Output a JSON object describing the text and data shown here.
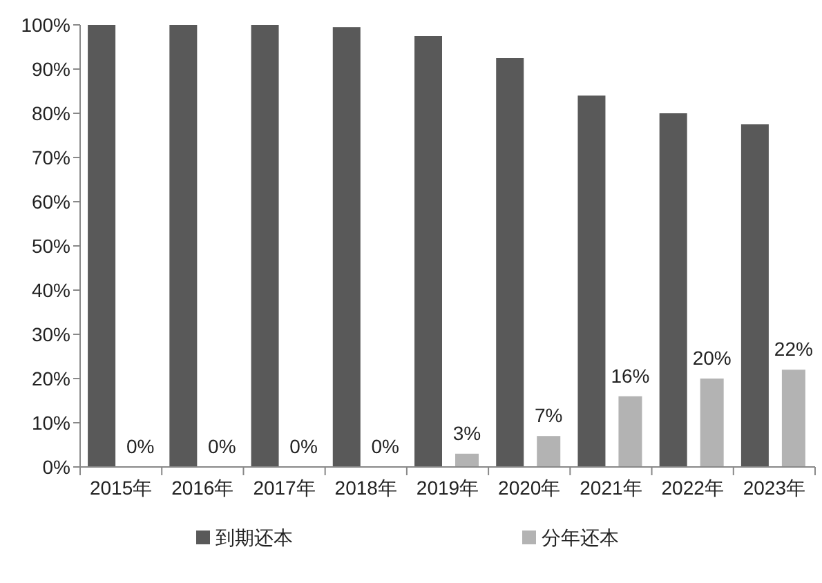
{
  "chart_data": {
    "type": "bar",
    "categories": [
      "2015年",
      "2016年",
      "2017年",
      "2018年",
      "2019年",
      "2020年",
      "2021年",
      "2022年",
      "2023年"
    ],
    "series": [
      {
        "name": "到期还本",
        "color": "#595959",
        "values": [
          100,
          100,
          100,
          99.5,
          97.5,
          92.5,
          84,
          80,
          77.5
        ]
      },
      {
        "name": "分年还本",
        "color": "#b3b3b3",
        "values": [
          0,
          0,
          0,
          0,
          3,
          7,
          16,
          20,
          22
        ],
        "value_labels": [
          "0%",
          "0%",
          "0%",
          "0%",
          "3%",
          "7%",
          "16%",
          "20%",
          "22%"
        ]
      }
    ],
    "ylim": [
      0,
      100
    ],
    "yticks": [
      {
        "value": 0,
        "label": "0%"
      },
      {
        "value": 10,
        "label": "10%"
      },
      {
        "value": 20,
        "label": "20%"
      },
      {
        "value": 30,
        "label": "30%"
      },
      {
        "value": 40,
        "label": "40%"
      },
      {
        "value": 50,
        "label": "50%"
      },
      {
        "value": 60,
        "label": "60%"
      },
      {
        "value": 70,
        "label": "70%"
      },
      {
        "value": 80,
        "label": "80%"
      },
      {
        "value": 90,
        "label": "90%"
      },
      {
        "value": 100,
        "label": "100%"
      }
    ],
    "grid": false,
    "legend": "bottom"
  }
}
